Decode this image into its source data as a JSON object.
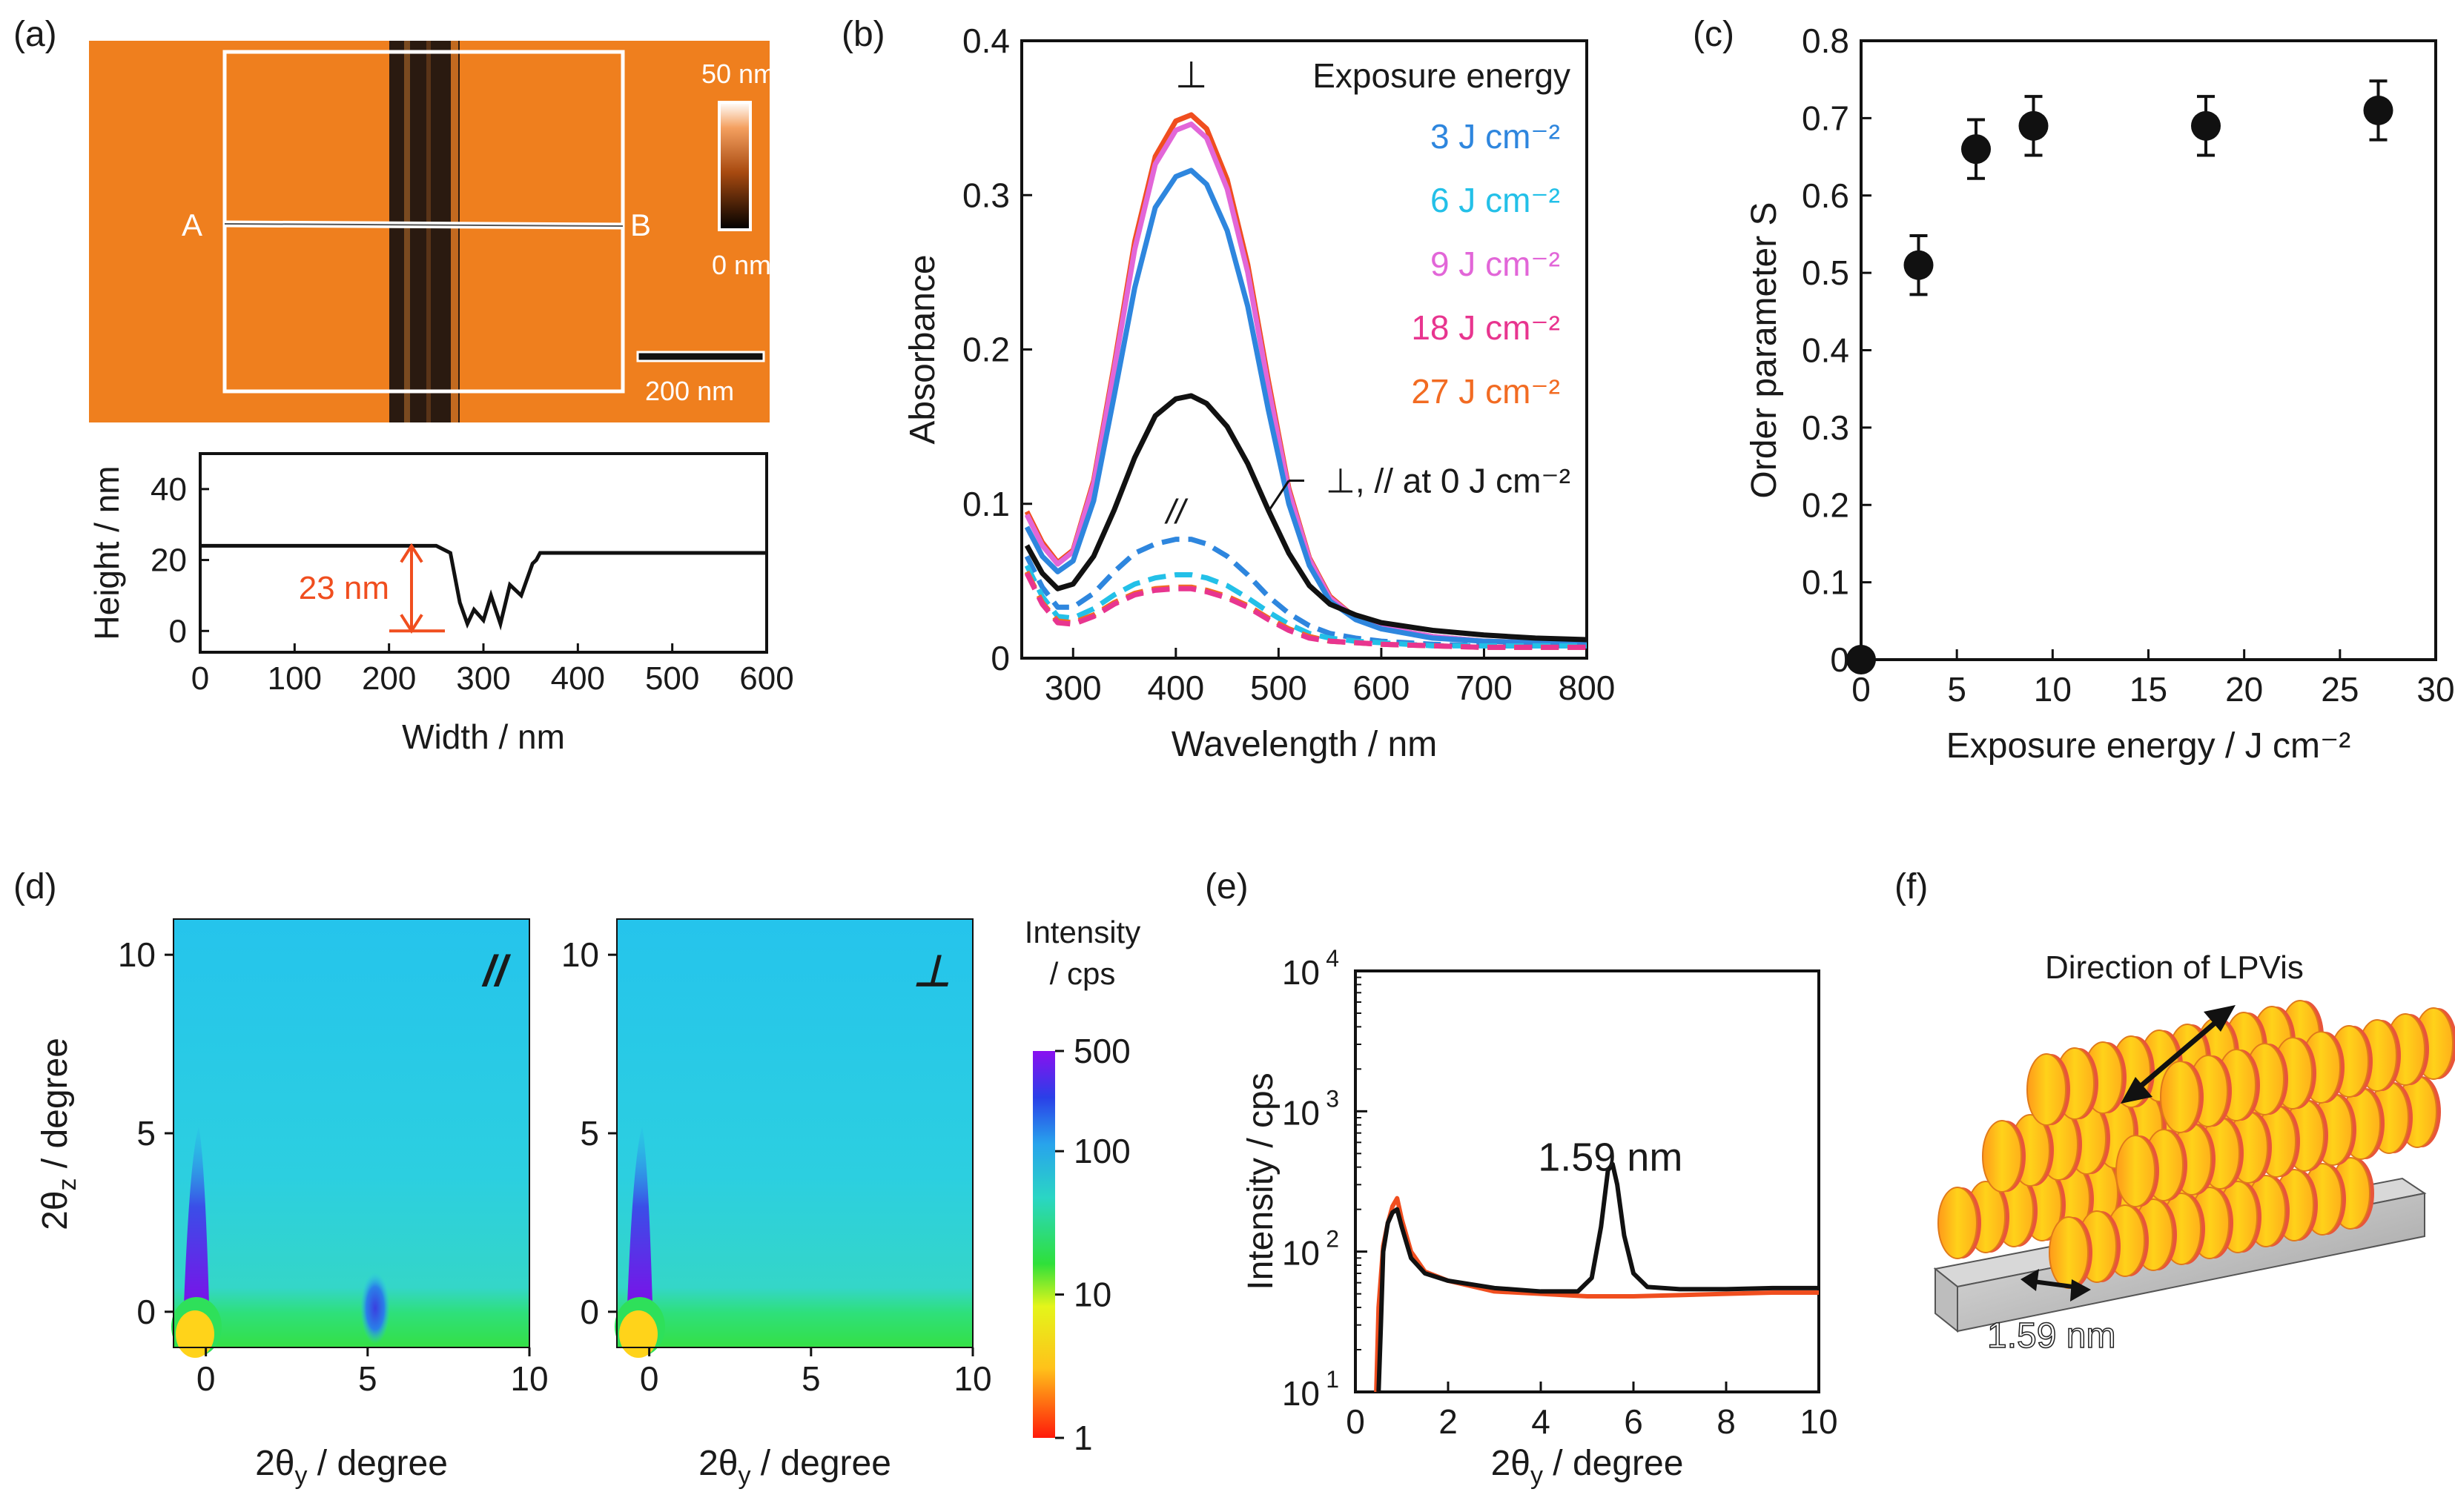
{
  "panels": {
    "a": {
      "letter": "(a)"
    },
    "b": {
      "letter": "(b)"
    },
    "c": {
      "letter": "(c)"
    },
    "d": {
      "letter": "(d)"
    },
    "e": {
      "letter": "(e)"
    },
    "f": {
      "letter": "(f)"
    }
  },
  "afm": {
    "scale_max": "50 nm",
    "scale_min": "0 nm",
    "scalebar": "200 nm",
    "point_a": "A",
    "point_b": "B"
  },
  "colors": {
    "afm_orange": "#ef7f1e",
    "groove": "#2a1a10",
    "black_series": "#111111",
    "orange_red": "#f04e1f",
    "blue": "#2e86de",
    "cyan": "#23c0e8",
    "magenta": "#e266d8",
    "pink": "#e8358f",
    "orange": "#f26b22"
  },
  "chart_data": [
    {
      "id": "a_profile",
      "type": "line",
      "title": "",
      "xlabel": "Width / nm",
      "ylabel": "Height / nm",
      "xlim": [
        0,
        600
      ],
      "ylim": [
        -6,
        50
      ],
      "xticks": [
        0,
        100,
        200,
        300,
        400,
        500,
        600
      ],
      "yticks": [
        0,
        20,
        40
      ],
      "annotation": "23 nm",
      "series": [
        {
          "name": "profile",
          "color": "#111111",
          "x": [
            0,
            100,
            200,
            250,
            265,
            275,
            283,
            290,
            300,
            308,
            318,
            328,
            340,
            352,
            356,
            360,
            400,
            500,
            600
          ],
          "y": [
            24,
            24,
            24,
            24,
            22,
            8,
            2,
            6,
            3,
            10,
            2,
            13,
            10,
            19,
            20,
            22,
            22,
            22,
            22
          ]
        }
      ]
    },
    {
      "id": "b",
      "type": "line",
      "title": "",
      "xlabel": "Wavelength / nm",
      "ylabel": "Absorbance",
      "xlim": [
        250,
        800
      ],
      "ylim": [
        0,
        0.4
      ],
      "xticks": [
        300,
        400,
        500,
        600,
        700,
        800
      ],
      "yticks": [
        0,
        0.1,
        0.2,
        0.3,
        0.4
      ],
      "legend_title": "Exposure energy",
      "legend": [
        "3 J cm⁻²",
        "6 J cm⁻²",
        "9 J cm⁻²",
        "18 J cm⁻²",
        "27 J cm⁻²"
      ],
      "annotations": {
        "perp": "⊥",
        "par": "//",
        "zero": "⊥, // at 0 J cm⁻²"
      },
      "x": [
        255,
        270,
        285,
        300,
        320,
        340,
        360,
        380,
        400,
        415,
        430,
        450,
        470,
        490,
        510,
        530,
        550,
        575,
        600,
        650,
        700,
        750,
        800
      ],
      "series": [
        {
          "name": "27 J cm-2 perp",
          "color": "#f04e1f",
          "dash": false,
          "y": [
            0.095,
            0.075,
            0.062,
            0.07,
            0.115,
            0.19,
            0.27,
            0.325,
            0.348,
            0.352,
            0.343,
            0.31,
            0.255,
            0.18,
            0.11,
            0.065,
            0.04,
            0.026,
            0.02,
            0.014,
            0.011,
            0.01,
            0.01
          ]
        },
        {
          "name": "9/18 J cm-2 perp",
          "color": "#e266d8",
          "dash": false,
          "y": [
            0.093,
            0.073,
            0.061,
            0.069,
            0.113,
            0.187,
            0.265,
            0.32,
            0.342,
            0.346,
            0.337,
            0.304,
            0.25,
            0.176,
            0.108,
            0.064,
            0.039,
            0.026,
            0.02,
            0.014,
            0.011,
            0.01,
            0.01
          ]
        },
        {
          "name": "3 J cm-2 perp",
          "color": "#2e86de",
          "dash": false,
          "y": [
            0.085,
            0.066,
            0.056,
            0.063,
            0.102,
            0.17,
            0.24,
            0.292,
            0.312,
            0.316,
            0.307,
            0.277,
            0.228,
            0.161,
            0.1,
            0.06,
            0.037,
            0.025,
            0.019,
            0.013,
            0.011,
            0.01,
            0.01
          ]
        },
        {
          "name": "0 J cm-2",
          "color": "#111111",
          "dash": false,
          "y": [
            0.073,
            0.055,
            0.045,
            0.048,
            0.066,
            0.096,
            0.13,
            0.157,
            0.168,
            0.17,
            0.165,
            0.15,
            0.126,
            0.096,
            0.068,
            0.047,
            0.035,
            0.028,
            0.023,
            0.018,
            0.015,
            0.013,
            0.012
          ]
        },
        {
          "name": "3 J cm-2 par",
          "color": "#2e86de",
          "dash": true,
          "y": [
            0.066,
            0.046,
            0.033,
            0.033,
            0.042,
            0.056,
            0.068,
            0.074,
            0.077,
            0.077,
            0.074,
            0.066,
            0.054,
            0.04,
            0.029,
            0.021,
            0.016,
            0.013,
            0.011,
            0.009,
            0.008,
            0.008,
            0.008
          ]
        },
        {
          "name": "6 J cm-2 par",
          "color": "#23c0e8",
          "dash": true,
          "y": [
            0.06,
            0.04,
            0.027,
            0.026,
            0.032,
            0.041,
            0.048,
            0.052,
            0.054,
            0.054,
            0.052,
            0.047,
            0.039,
            0.03,
            0.022,
            0.016,
            0.013,
            0.011,
            0.01,
            0.008,
            0.008,
            0.008,
            0.008
          ]
        },
        {
          "name": "27 J cm-2 par",
          "color": "#f26b22",
          "dash": true,
          "y": [
            0.056,
            0.036,
            0.024,
            0.023,
            0.028,
            0.036,
            0.042,
            0.045,
            0.046,
            0.046,
            0.044,
            0.04,
            0.034,
            0.026,
            0.019,
            0.014,
            0.011,
            0.01,
            0.009,
            0.008,
            0.007,
            0.007,
            0.007
          ]
        },
        {
          "name": "18 J cm-2 par",
          "color": "#e8358f",
          "dash": true,
          "y": [
            0.055,
            0.035,
            0.023,
            0.022,
            0.027,
            0.035,
            0.041,
            0.044,
            0.045,
            0.045,
            0.043,
            0.039,
            0.033,
            0.025,
            0.018,
            0.013,
            0.011,
            0.01,
            0.009,
            0.008,
            0.007,
            0.007,
            0.007
          ]
        }
      ]
    },
    {
      "id": "c",
      "type": "scatter",
      "title": "",
      "xlabel": "Exposure energy / J cm⁻²",
      "ylabel": "Order parameter S",
      "xlim": [
        0,
        30
      ],
      "ylim": [
        0,
        0.8
      ],
      "xticks": [
        0,
        5,
        10,
        15,
        20,
        25,
        30
      ],
      "yticks": [
        0,
        0.1,
        0.2,
        0.3,
        0.4,
        0.5,
        0.6,
        0.7,
        0.8
      ],
      "x": [
        0,
        3,
        6,
        9,
        18,
        27
      ],
      "y": [
        0,
        0.51,
        0.66,
        0.69,
        0.69,
        0.71
      ],
      "err": [
        0,
        0.038,
        0.038,
        0.038,
        0.038,
        0.038
      ]
    },
    {
      "id": "d",
      "type": "heatmap",
      "title": "",
      "xlabel": "2θy / degree",
      "ylabel": "2θz / degree",
      "xlim": [
        -1,
        10
      ],
      "ylim": [
        -1,
        11
      ],
      "xticks": [
        0,
        5,
        10
      ],
      "yticks": [
        0,
        5,
        10
      ],
      "maps": [
        {
          "label": "//",
          "peaks": [
            {
              "x": 0,
              "y": 0
            },
            {
              "x": 5.4,
              "y": 0.6
            }
          ]
        },
        {
          "label": "⊥",
          "peaks": [
            {
              "x": 0,
              "y": 0
            }
          ]
        }
      ],
      "colorbar": {
        "title1": "Intensity",
        "title2": "/ cps",
        "ticks": [
          "500",
          "100",
          "10",
          "1"
        ],
        "values": [
          500,
          100,
          10,
          1
        ],
        "scale": "log"
      }
    },
    {
      "id": "e",
      "type": "line",
      "title": "",
      "xlabel": "2θy / degree",
      "ylabel": "Intensity / cps",
      "xscale": "linear",
      "yscale": "log",
      "xlim": [
        0,
        10
      ],
      "ylim": [
        10,
        10000
      ],
      "xticks": [
        0,
        2,
        4,
        6,
        8,
        10
      ],
      "yticks": [
        10,
        100,
        1000,
        10000
      ],
      "ytick_labels": [
        {
          "base": "10",
          "exp": "1"
        },
        {
          "base": "10",
          "exp": "2"
        },
        {
          "base": "10",
          "exp": "3"
        },
        {
          "base": "10",
          "exp": "4"
        }
      ],
      "annotation": "1.59 nm",
      "series": [
        {
          "name": "//",
          "color": "#111111",
          "x": [
            0.5,
            0.55,
            0.6,
            0.7,
            0.8,
            0.9,
            1.0,
            1.2,
            1.5,
            2.0,
            3.0,
            4.0,
            4.8,
            5.1,
            5.3,
            5.45,
            5.55,
            5.65,
            5.8,
            6.0,
            6.3,
            7.0,
            8.0,
            9.0,
            10.0
          ],
          "y": [
            10,
            30,
            100,
            160,
            190,
            200,
            150,
            90,
            70,
            62,
            55,
            52,
            52,
            65,
            150,
            380,
            420,
            300,
            130,
            70,
            56,
            54,
            54,
            55,
            55
          ]
        },
        {
          "name": "⊥",
          "color": "#f04e1f",
          "x": [
            0.45,
            0.5,
            0.6,
            0.7,
            0.8,
            0.9,
            1.0,
            1.2,
            1.5,
            2.0,
            3.0,
            4.0,
            5.0,
            6.0,
            7.0,
            8.0,
            9.0,
            10.0
          ],
          "y": [
            10,
            40,
            110,
            160,
            210,
            240,
            170,
            100,
            72,
            62,
            52,
            50,
            48,
            48,
            49,
            50,
            51,
            51
          ]
        }
      ]
    }
  ],
  "schematic": {
    "direction_label": "Direction of LPVis",
    "spacing_label": "1.59 nm"
  }
}
